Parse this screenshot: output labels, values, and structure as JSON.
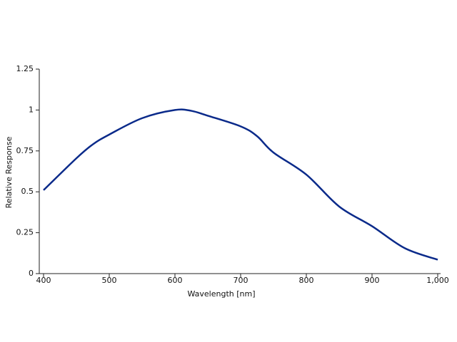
{
  "chart_data": {
    "type": "line",
    "x_label": "Wavelength [nm]",
    "y_label": "Relative Response",
    "x": [
      400,
      450,
      475,
      500,
      550,
      600,
      625,
      650,
      700,
      725,
      750,
      800,
      850,
      900,
      950,
      1000
    ],
    "series": [
      {
        "name": "Relative Response",
        "color": "#0a2a8a",
        "values": [
          0.51,
          0.705,
          0.79,
          0.85,
          0.95,
          1.0,
          0.995,
          0.965,
          0.9,
          0.84,
          0.74,
          0.605,
          0.41,
          0.29,
          0.155,
          0.085
        ]
      }
    ],
    "xlim": [
      400,
      1000
    ],
    "xticks": [
      400,
      500,
      600,
      700,
      800,
      900,
      {
        "value": 1000,
        "label": "1,000"
      }
    ],
    "ylim": [
      0,
      1.25
    ],
    "yticks": [
      0,
      0.25,
      0.5,
      0.75,
      1,
      1.25
    ],
    "grid": false
  }
}
